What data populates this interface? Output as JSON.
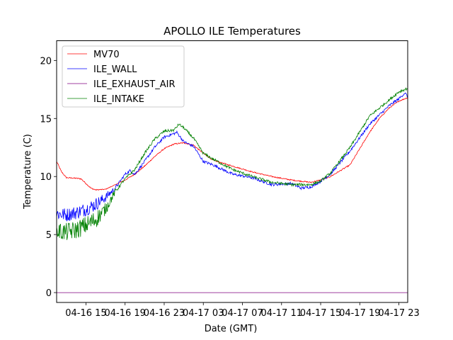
{
  "chart_data": {
    "type": "line",
    "title": "APOLLO ILE Temperatures",
    "xlabel": "Date (GMT)",
    "ylabel": "Temperature (C)",
    "x_units": "hours since 04-16 00:00 GMT",
    "xlim": [
      12.0,
      47.9
    ],
    "ylim": [
      -0.85,
      21.7
    ],
    "grid": false,
    "legend_position": "top-left",
    "x_ticks": [
      {
        "value": 15,
        "label": "04-16 15"
      },
      {
        "value": 19,
        "label": "04-16 19"
      },
      {
        "value": 23,
        "label": "04-16 23"
      },
      {
        "value": 27,
        "label": "04-17 03"
      },
      {
        "value": 31,
        "label": "04-17 07"
      },
      {
        "value": 35,
        "label": "04-17 11"
      },
      {
        "value": 39,
        "label": "04-17 15"
      },
      {
        "value": 43,
        "label": "04-17 19"
      },
      {
        "value": 47,
        "label": "04-17 23"
      }
    ],
    "y_ticks": [
      {
        "value": 0,
        "label": "0"
      },
      {
        "value": 5,
        "label": "5"
      },
      {
        "value": 10,
        "label": "10"
      },
      {
        "value": 15,
        "label": "15"
      },
      {
        "value": 20,
        "label": "20"
      }
    ],
    "series": [
      {
        "name": "MV70",
        "color": "#ff0000",
        "noise": 0.05,
        "x": [
          12,
          12.5,
          13,
          14,
          14.5,
          15,
          15.5,
          16,
          17,
          18,
          19,
          20,
          21,
          22,
          23,
          24,
          25,
          26,
          27,
          28,
          30,
          32,
          34,
          36,
          38,
          39,
          40,
          41,
          42,
          43,
          44,
          45,
          46,
          47,
          47.9
        ],
        "values": [
          11.3,
          10.4,
          9.9,
          9.85,
          9.8,
          9.4,
          9.0,
          8.85,
          8.9,
          9.3,
          9.7,
          10.2,
          10.9,
          11.7,
          12.4,
          12.8,
          12.9,
          12.7,
          12.0,
          11.4,
          10.9,
          10.4,
          10.0,
          9.7,
          9.5,
          9.7,
          10.0,
          10.5,
          11.0,
          12.4,
          13.8,
          15.0,
          15.9,
          16.5,
          16.8
        ]
      },
      {
        "name": "ILE_WALL",
        "color": "#0000ff",
        "noise": 0.6,
        "x": [
          12,
          13,
          14,
          15,
          16,
          17,
          18,
          19,
          19.5,
          20,
          21,
          22,
          23,
          24,
          24.3,
          25,
          26,
          27,
          28,
          30,
          32,
          33,
          34,
          36,
          37,
          38,
          39,
          40,
          42,
          44,
          45,
          46,
          47,
          47.6,
          47.9
        ],
        "values": [
          6.8,
          6.7,
          6.9,
          7.2,
          7.6,
          8.2,
          9.0,
          10.2,
          10.5,
          10.2,
          11.3,
          12.5,
          13.4,
          13.7,
          13.8,
          13.0,
          12.6,
          11.3,
          11.0,
          10.2,
          9.9,
          9.6,
          9.3,
          9.4,
          9.0,
          9.1,
          9.6,
          10.2,
          12.2,
          14.5,
          15.3,
          16.1,
          16.7,
          17.2,
          16.9
        ]
      },
      {
        "name": "ILE_EXHAUST_AIR",
        "color": "#800080",
        "noise": 0,
        "x": [
          12,
          47.9
        ],
        "values": [
          0,
          0
        ]
      },
      {
        "name": "ILE_INTAKE",
        "color": "#008000",
        "noise": 0.8,
        "x": [
          12,
          13,
          14,
          15,
          16,
          17,
          18,
          19,
          20,
          21,
          22,
          23,
          24,
          24.5,
          25,
          26,
          27,
          28,
          30,
          32,
          34,
          36,
          38,
          39,
          40,
          42,
          44,
          45,
          46,
          47,
          47.9
        ],
        "values": [
          5.3,
          5.2,
          5.4,
          5.8,
          6.3,
          7.2,
          8.7,
          9.8,
          10.6,
          12.0,
          13.2,
          13.9,
          14.0,
          14.5,
          14.2,
          13.3,
          12.0,
          11.5,
          10.6,
          10.0,
          9.5,
          9.3,
          9.3,
          9.6,
          10.3,
          12.5,
          15.2,
          15.9,
          16.6,
          17.3,
          17.6
        ]
      }
    ]
  }
}
